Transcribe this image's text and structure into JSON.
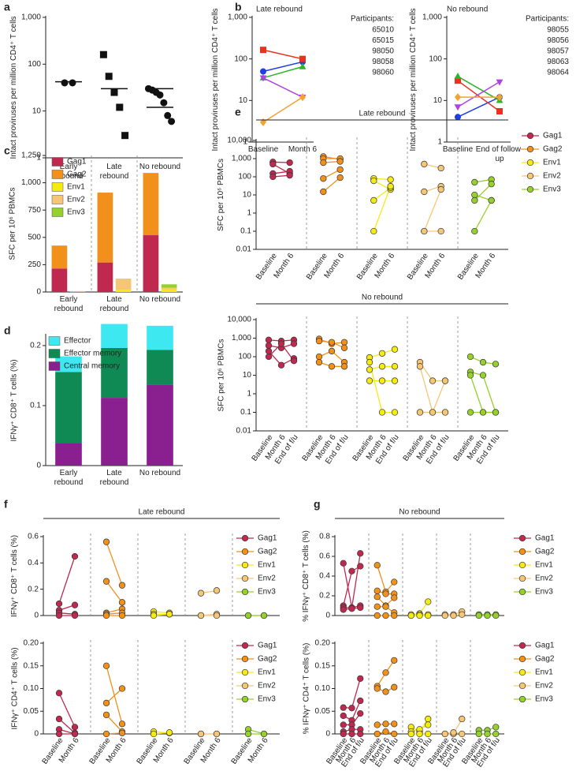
{
  "chart_data": [
    {
      "label": "a",
      "type": "scatter",
      "ylabel": "Intact proviruses per million CD4⁺ T cells",
      "log": true,
      "ylim": [
        1,
        1000
      ],
      "yticks": [
        1,
        10,
        100,
        {
          "value": 1000,
          "label": "1,000"
        }
      ],
      "categories": [
        "Early rebound",
        "Late rebound",
        "No rebound"
      ],
      "markers": [
        "circle",
        "square",
        "circle"
      ],
      "color": "#111111",
      "points": [
        [
          40,
          40
        ],
        [
          160,
          55,
          25,
          12,
          3
        ],
        [
          30,
          28,
          25,
          22,
          15,
          8,
          6
        ]
      ],
      "medians": [
        [
          42
        ],
        [
          30
        ],
        [
          30,
          12
        ]
      ]
    },
    {
      "label": "b",
      "type": "line",
      "title": "Late rebound",
      "ylabel": "Intact proviruses per million CD4⁺ T cells",
      "log": true,
      "ylim": [
        1,
        1000
      ],
      "yticks": [
        1,
        10,
        100,
        {
          "value": 1000,
          "label": "1,000"
        }
      ],
      "categories": [
        "Baseline",
        "Month 6"
      ],
      "legend_title": "Participants:",
      "series": [
        {
          "name": "65010",
          "color": "#1f3fe0",
          "marker": "circle",
          "values": [
            50,
            85
          ]
        },
        {
          "name": "65015",
          "color": "#e8321f",
          "marker": "square",
          "values": [
            165,
            100
          ]
        },
        {
          "name": "98050",
          "color": "#2bb52b",
          "marker": "triangle",
          "values": [
            35,
            65
          ]
        },
        {
          "name": "98058",
          "color": "#b042e0",
          "marker": "triangle-down",
          "values": [
            35,
            12
          ]
        },
        {
          "name": "98060",
          "color": "#f4a230",
          "marker": "diamond",
          "values": [
            3,
            12
          ]
        }
      ]
    },
    {
      "type": "line",
      "title": "No rebound",
      "ylabel": "Intact proviruses per million CD4⁺ T cells",
      "log": true,
      "ylim": [
        1,
        1000
      ],
      "yticks": [
        1,
        10,
        100,
        {
          "value": 1000,
          "label": "1,000"
        }
      ],
      "categories": [
        "Baseline",
        "End of follow-up"
      ],
      "legend_title": "Participants:",
      "series": [
        {
          "name": "98055",
          "color": "#1f3fe0",
          "marker": "circle",
          "values": [
            4,
            12
          ]
        },
        {
          "name": "98056",
          "color": "#e8321f",
          "marker": "square",
          "values": [
            30,
            5.5
          ]
        },
        {
          "name": "98057",
          "color": "#2bb52b",
          "marker": "triangle",
          "values": [
            38,
            10
          ]
        },
        {
          "name": "98063",
          "color": "#b042e0",
          "marker": "triangle-down",
          "values": [
            7,
            28
          ]
        },
        {
          "name": "98064",
          "color": "#f4a230",
          "marker": "diamond",
          "values": [
            12,
            12
          ]
        }
      ]
    },
    {
      "label": "c",
      "type": "bar",
      "ylabel": "SFC per 10⁶ PBMCs",
      "ylim": [
        0,
        1250
      ],
      "yticks": [
        0,
        250,
        500,
        750,
        {
          "value": 1000,
          "label": "1,000"
        },
        {
          "value": 1250,
          "label": "1,250"
        }
      ],
      "categories": [
        "Early rebound",
        "Late rebound",
        "No rebound"
      ],
      "series": [
        {
          "name": "Gag1",
          "color": "#c0294f",
          "values": [
            215,
            270,
            520
          ]
        },
        {
          "name": "Gag2",
          "color": "#f2901c",
          "values": [
            210,
            640,
            570
          ]
        },
        {
          "name": "Env1",
          "color": "#f5eb12",
          "values": [
            3,
            20,
            25
          ]
        },
        {
          "name": "Env2",
          "color": "#f6c677",
          "values": [
            3,
            100,
            15
          ]
        },
        {
          "name": "Env3",
          "color": "#96d02c",
          "values": [
            2,
            2,
            30
          ]
        }
      ]
    },
    {
      "label": "d",
      "type": "bar",
      "ylabel": "IFNγ⁺ CD8⁺ T cells (%)",
      "ylim": [
        0,
        0.217
      ],
      "yticks": [
        0,
        0.1,
        0.2
      ],
      "categories": [
        "Early rebound",
        "Late rebound",
        "No rebound"
      ],
      "legend_reversed": true,
      "series": [
        {
          "name": "Central memory",
          "color": "#8a1f8f",
          "values": [
            0.038,
            0.113,
            0.135
          ]
        },
        {
          "name": "Effector memory",
          "color": "#0f8a55",
          "values": [
            0.118,
            0.083,
            0.058
          ]
        },
        {
          "name": "Effector",
          "color": "#3ee8f0",
          "values": [
            0.026,
            0.04,
            0.04
          ]
        }
      ]
    },
    {
      "label": "e",
      "type": "paired",
      "title": "Late rebound",
      "ylabel": "SFC per 10⁶ PBMCs",
      "log": true,
      "ylim": [
        0.01,
        10000
      ],
      "yticks": [
        0.01,
        0.1,
        1,
        10,
        100,
        {
          "value": 1000,
          "label": "1,000"
        },
        {
          "value": 10000,
          "label": "10,000"
        }
      ],
      "timepoints": [
        "Baseline",
        "Month 6"
      ],
      "legend": true,
      "groups": [
        {
          "name": "Gag1",
          "color": "#c0294f",
          "lines": [
            [
              650,
              600
            ],
            [
              500,
              150
            ],
            [
              150,
              200
            ],
            [
              100,
              120
            ]
          ]
        },
        {
          "name": "Gag2",
          "color": "#f2901c",
          "lines": [
            [
              1300,
              900
            ],
            [
              1000,
              1000
            ],
            [
              600,
              700
            ],
            [
              80,
              250
            ],
            [
              15,
              90
            ]
          ]
        },
        {
          "name": "Env1",
          "color": "#f5eb12",
          "lines": [
            [
              80,
              70
            ],
            [
              60,
              20
            ],
            [
              5,
              25
            ],
            [
              0.1,
              30
            ]
          ]
        },
        {
          "name": "Env2",
          "color": "#f6c677",
          "lines": [
            [
              500,
              300
            ],
            [
              15,
              30
            ],
            [
              0.1,
              20
            ],
            [
              0.1,
              0.1
            ]
          ]
        },
        {
          "name": "Env3",
          "color": "#96d02c",
          "lines": [
            [
              50,
              70
            ],
            [
              10,
              5
            ],
            [
              5,
              40
            ],
            [
              0.1,
              5
            ]
          ]
        }
      ]
    },
    {
      "type": "paired",
      "title": "No rebound",
      "ylabel": "SFC per 10⁶ PBMCs",
      "log": true,
      "ylim": [
        0.01,
        10000
      ],
      "yticks": [
        0.01,
        0.1,
        1,
        10,
        100,
        {
          "value": 1000,
          "label": "1,000"
        },
        {
          "value": 10000,
          "label": "10,000"
        }
      ],
      "timepoints": [
        "Baseline",
        "Month 6",
        "End of f/u"
      ],
      "groups": [
        {
          "color": "#c0294f",
          "lines": [
            [
              800,
              700,
              800
            ],
            [
              400,
              300,
              500
            ],
            [
              200,
              35,
              80
            ],
            [
              100,
              500,
              60
            ]
          ]
        },
        {
          "color": "#f2901c",
          "lines": [
            [
              900,
              500,
              600
            ],
            [
              700,
              600,
              300
            ],
            [
              100,
              200,
              50
            ],
            [
              50,
              30,
              30
            ]
          ]
        },
        {
          "color": "#f5eb12",
          "lines": [
            [
              90,
              150,
              250
            ],
            [
              20,
              30,
              30
            ],
            [
              5,
              5,
              5
            ],
            [
              50,
              0.1,
              0.1
            ]
          ]
        },
        {
          "color": "#f6c677",
          "lines": [
            [
              50,
              5,
              5
            ],
            [
              30,
              0.1,
              0.1
            ],
            [
              0.1,
              0.1,
              5
            ],
            [
              0.1,
              0.1,
              0.1
            ]
          ]
        },
        {
          "color": "#96d02c",
          "lines": [
            [
              100,
              50,
              40
            ],
            [
              15,
              10,
              0.1
            ],
            [
              10,
              0.1,
              0.1
            ],
            [
              0.1,
              0.1,
              0.1
            ]
          ]
        }
      ]
    },
    {
      "label": "f",
      "type": "paired",
      "title": "Late rebound",
      "ylabel": "IFNγ⁺ CD8⁺ T cells (%)",
      "ylim": [
        0,
        0.6
      ],
      "yticks": [
        0,
        0.2,
        0.4,
        0.6
      ],
      "legend": true,
      "groups": [
        {
          "name": "Gag1",
          "color": "#c0294f",
          "lines": [
            [
              0.09,
              0.45
            ],
            [
              0.04,
              0.08
            ],
            [
              0.02,
              0.01
            ],
            [
              0,
              0
            ]
          ]
        },
        {
          "name": "Gag2",
          "color": "#f2901c",
          "lines": [
            [
              0.56,
              0.23
            ],
            [
              0.26,
              0.1
            ],
            [
              0.02,
              0.05
            ],
            [
              0.01,
              0.02
            ],
            [
              0,
              0
            ]
          ]
        },
        {
          "name": "Env1",
          "color": "#f5eb12",
          "lines": [
            [
              0.03,
              0.02
            ],
            [
              0.01,
              0.01
            ],
            [
              0,
              0.01
            ]
          ]
        },
        {
          "name": "Env2",
          "color": "#f6c677",
          "lines": [
            [
              0.17,
              0.19
            ],
            [
              0,
              0.01
            ],
            [
              0,
              0
            ]
          ]
        },
        {
          "name": "Env3",
          "color": "#96d02c",
          "lines": [
            [
              0,
              0
            ],
            [
              0,
              0
            ]
          ]
        }
      ]
    },
    {
      "type": "paired",
      "ylabel": "IFNγ⁺ CD4⁺ T cells (%)",
      "ylim": [
        0,
        0.2
      ],
      "yticks": [
        0,
        0.05,
        {
          "value": 0.1,
          "label": "0.10"
        },
        0.15,
        {
          "value": 0.2,
          "label": "0.20"
        }
      ],
      "timepoints": [
        "Baseline",
        "Month 6"
      ],
      "legend": true,
      "groups": [
        {
          "name": "Gag1",
          "color": "#c0294f",
          "lines": [
            [
              0.09,
              0.015
            ],
            [
              0.033,
              0.002
            ],
            [
              0.01,
              0
            ],
            [
              0,
              0
            ]
          ]
        },
        {
          "name": "Gag2",
          "color": "#f2901c",
          "lines": [
            [
              0.15,
              0.022
            ],
            [
              0.068,
              0.1
            ],
            [
              0.042,
              0.005
            ],
            [
              0,
              0.002
            ]
          ]
        },
        {
          "name": "Env1",
          "color": "#f5eb12",
          "lines": [
            [
              0.005,
              0.002
            ],
            [
              0,
              0.003
            ]
          ]
        },
        {
          "name": "Env2",
          "color": "#f6c677",
          "lines": [
            [
              0,
              0
            ],
            [
              0,
              0
            ]
          ]
        },
        {
          "name": "Env3",
          "color": "#96d02c",
          "lines": [
            [
              0.01,
              0
            ],
            [
              0,
              0
            ]
          ]
        }
      ]
    },
    {
      "label": "g",
      "type": "paired",
      "title": "No rebound",
      "ylabel": "% IFNγ⁺ CD8⁺ T cells (%)",
      "ylim": [
        0,
        0.8
      ],
      "yticks": [
        0,
        0.2,
        0.4,
        0.6,
        0.8
      ],
      "legend": true,
      "groups": [
        {
          "name": "Gag1",
          "color": "#c0294f",
          "lines": [
            [
              0.53,
              0.08,
              0.63
            ],
            [
              0.1,
              0.45,
              0.5
            ],
            [
              0.08,
              0.08,
              0.1
            ],
            [
              0.06,
              0.07,
              0.08
            ]
          ]
        },
        {
          "name": "Gag2",
          "color": "#f2901c",
          "lines": [
            [
              0.51,
              0.24,
              0.34
            ],
            [
              0.25,
              0.22,
              0.22
            ],
            [
              0.19,
              0.1,
              0.18
            ],
            [
              0.09,
              0.09,
              0.03
            ],
            [
              0,
              0,
              0
            ]
          ]
        },
        {
          "name": "Env1",
          "color": "#f5eb12",
          "lines": [
            [
              0.01,
              0.02,
              0.14
            ],
            [
              0,
              0.01,
              0.01
            ],
            [
              0,
              0,
              0
            ]
          ]
        },
        {
          "name": "Env2",
          "color": "#f6c677",
          "lines": [
            [
              0.01,
              0.01,
              0.04
            ],
            [
              0,
              0,
              0.01
            ]
          ]
        },
        {
          "name": "Env3",
          "color": "#96d02c",
          "lines": [
            [
              0.01,
              0.01,
              0.01
            ],
            [
              0,
              0,
              0
            ]
          ]
        }
      ]
    },
    {
      "type": "paired",
      "ylabel": "% IFNγ⁺ CD4⁺ T cells (%)",
      "ylim": [
        0,
        0.2
      ],
      "yticks": [
        0,
        0.05,
        {
          "value": 0.1,
          "label": "0.10"
        },
        0.15,
        {
          "value": 0.2,
          "label": "0.20"
        }
      ],
      "timepoints": [
        "Baseline",
        "Month 6",
        "End of f/u"
      ],
      "legend": true,
      "groups": [
        {
          "name": "Gag1",
          "color": "#c0294f",
          "lines": [
            [
              0.058,
              0.057,
              0.122
            ],
            [
              0.04,
              0.03,
              0.073
            ],
            [
              0.02,
              0.02,
              0.045
            ],
            [
              0.005,
              0.01,
              0.01
            ],
            [
              0,
              0,
              0
            ]
          ]
        },
        {
          "name": "Gag2",
          "color": "#f2901c",
          "lines": [
            [
              0.105,
              0.135,
              0.162
            ],
            [
              0.1,
              0.093,
              0.103
            ],
            [
              0.02,
              0.022,
              0.022
            ],
            [
              0,
              0.005,
              0
            ]
          ]
        },
        {
          "name": "Env1",
          "color": "#f5eb12",
          "lines": [
            [
              0.015,
              0.005,
              0.033
            ],
            [
              0.005,
              0.01,
              0.02
            ],
            [
              0,
              0,
              0
            ]
          ]
        },
        {
          "name": "Env2",
          "color": "#f6c677",
          "lines": [
            [
              0,
              0,
              0.033
            ],
            [
              0,
              0.003,
              0
            ]
          ]
        },
        {
          "name": "Env3",
          "color": "#96d02c",
          "lines": [
            [
              0.008,
              0.008,
              0.015
            ],
            [
              0,
              0,
              0
            ]
          ]
        }
      ]
    }
  ]
}
